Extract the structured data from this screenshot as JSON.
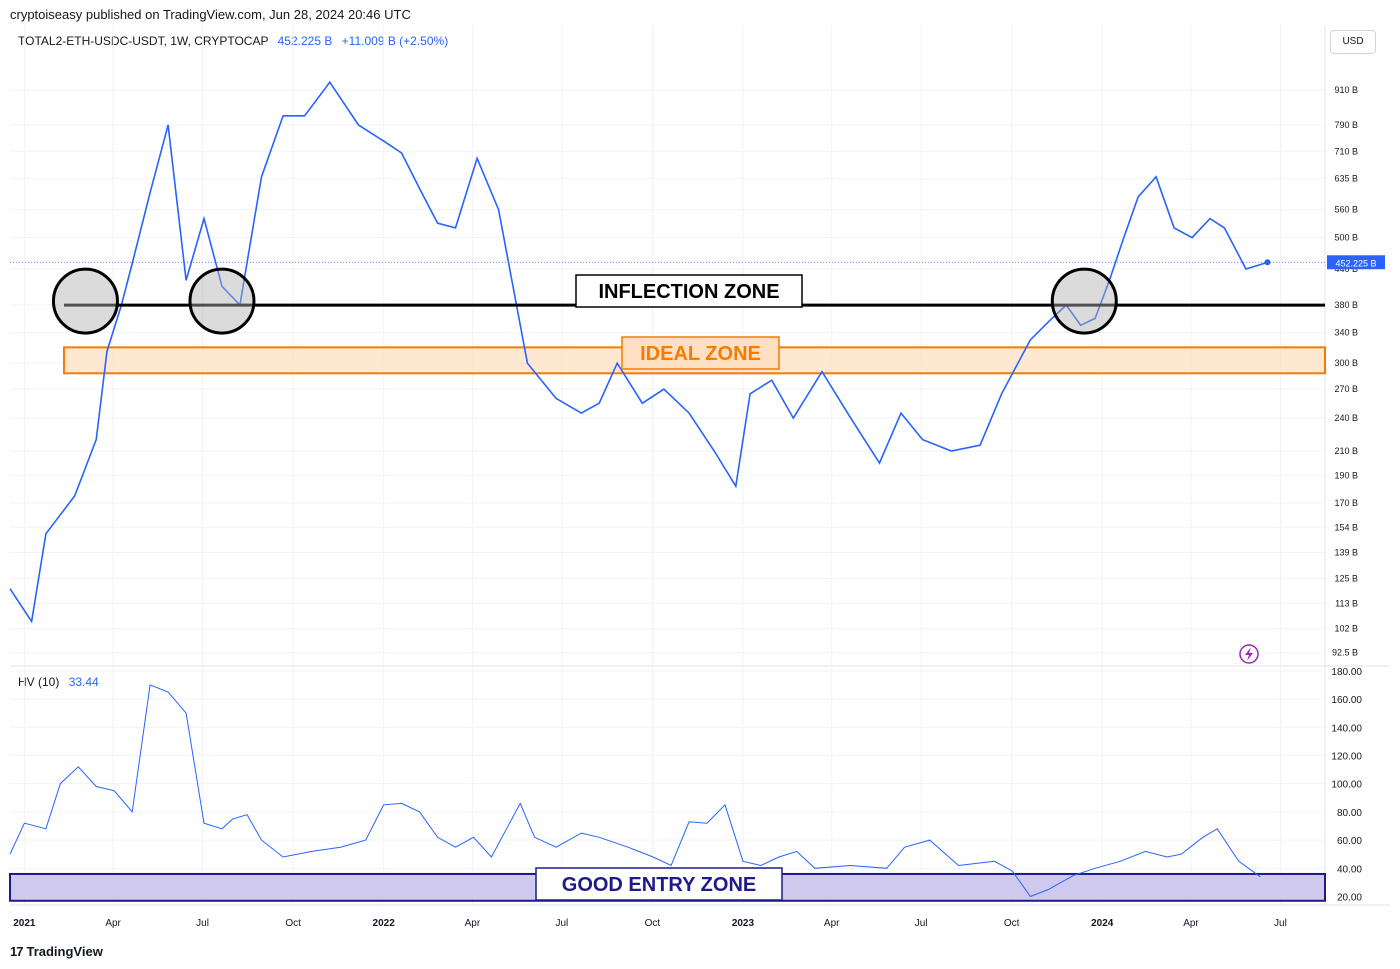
{
  "header": {
    "published": "cryptoiseasy published on TradingView.com, Jun 28, 2024 20:46 UTC"
  },
  "legend": {
    "symbol": "TOTAL2-ETH-USDC-USDT, 1W, CRYPTOCAP",
    "value": "452.225 B",
    "change": "+11.009 B (+2.50%)"
  },
  "currency": "USD",
  "hv_legend": {
    "label": "HV (10)",
    "value": "33.44"
  },
  "footer": {
    "brand": "TradingView",
    "logo": "17"
  },
  "colors": {
    "line": "#2962ff",
    "ideal": "#f57c00",
    "good": "#1f1a8c",
    "grid": "#f0f3fa",
    "inflection": "#000000"
  },
  "chart_data": [
    {
      "type": "line",
      "title": "TOTAL2-ETH-USDC-USDT, 1W, CRYPTOCAP",
      "yscale": "log",
      "y_unit": "B",
      "ylim": [
        88,
        1050
      ],
      "x_ticks": [
        "2021",
        "Apr",
        "Jul",
        "Oct",
        "2022",
        "Apr",
        "Jul",
        "Oct",
        "2023",
        "Apr",
        "Jul",
        "Oct",
        "2024",
        "Apr",
        "Jul"
      ],
      "y_ticks": [
        "910 B",
        "790 B",
        "710 B",
        "635 B",
        "560 B",
        "500 B",
        "440 B",
        "380 B",
        "340 B",
        "300 B",
        "270 B",
        "240 B",
        "210 B",
        "190 B",
        "170 B",
        "154 B",
        "139 B",
        "125 B",
        "113 B",
        "102 B",
        "92.5 B"
      ],
      "y_tick_values": [
        910,
        790,
        710,
        635,
        560,
        500,
        440,
        380,
        340,
        300,
        270,
        240,
        210,
        190,
        170,
        154,
        139,
        125,
        113,
        102,
        92.5
      ],
      "last_value_label": "452.225 B",
      "last_value": 452.225,
      "series": [
        {
          "x": [
            2020.96,
            2021.02,
            2021.06,
            2021.1,
            2021.14,
            2021.2,
            2021.23,
            2021.27,
            2021.3,
            2021.35,
            2021.4,
            2021.45,
            2021.5,
            2021.55,
            2021.6,
            2021.66,
            2021.72,
            2021.78,
            2021.85,
            2021.93,
            2022.0,
            2022.05,
            2022.1,
            2022.15,
            2022.2,
            2022.26,
            2022.32,
            2022.4,
            2022.48,
            2022.55,
            2022.6,
            2022.65,
            2022.72,
            2022.78,
            2022.85,
            2022.92,
            2022.98,
            2023.02,
            2023.08,
            2023.14,
            2023.22,
            2023.3,
            2023.38,
            2023.44,
            2023.5,
            2023.58,
            2023.66,
            2023.72,
            2023.8,
            2023.86,
            2023.9,
            2023.94,
            2023.98,
            2024.02,
            2024.06,
            2024.1,
            2024.15,
            2024.2,
            2024.25,
            2024.3,
            2024.34,
            2024.4,
            2024.46
          ],
          "y": [
            120,
            105,
            150,
            162,
            175,
            220,
            315,
            380,
            450,
            600,
            790,
            420,
            540,
            410,
            380,
            640,
            820,
            820,
            940,
            790,
            740,
            705,
            610,
            530,
            520,
            690,
            560,
            300,
            260,
            245,
            255,
            300,
            255,
            270,
            245,
            210,
            182,
            265,
            280,
            240,
            290,
            240,
            200,
            245,
            220,
            210,
            215,
            265,
            330,
            360,
            380,
            350,
            360,
            420,
            500,
            590,
            640,
            520,
            500,
            540,
            520,
            440,
            452
          ]
        }
      ]
    },
    {
      "type": "line",
      "title": "HV (10)",
      "ylim": [
        14,
        182
      ],
      "y_ticks": [
        "180.00",
        "160.00",
        "140.00",
        "120.00",
        "100.00",
        "80.00",
        "60.00",
        "40.00",
        "20.00"
      ],
      "y_tick_values": [
        180,
        160,
        140,
        120,
        100,
        80,
        60,
        40,
        20
      ],
      "series": [
        {
          "x": [
            2020.96,
            2021.0,
            2021.06,
            2021.1,
            2021.15,
            2021.2,
            2021.25,
            2021.3,
            2021.35,
            2021.4,
            2021.45,
            2021.5,
            2021.55,
            2021.58,
            2021.62,
            2021.66,
            2021.72,
            2021.8,
            2021.88,
            2021.95,
            2022.0,
            2022.05,
            2022.1,
            2022.15,
            2022.2,
            2022.25,
            2022.3,
            2022.38,
            2022.42,
            2022.48,
            2022.55,
            2022.6,
            2022.68,
            2022.75,
            2022.8,
            2022.85,
            2022.9,
            2022.95,
            2023.0,
            2023.05,
            2023.1,
            2023.15,
            2023.2,
            2023.3,
            2023.4,
            2023.45,
            2023.52,
            2023.6,
            2023.7,
            2023.75,
            2023.8,
            2023.85,
            2023.92,
            2023.98,
            2024.05,
            2024.12,
            2024.18,
            2024.22,
            2024.28,
            2024.32,
            2024.38,
            2024.44
          ],
          "y": [
            50,
            72,
            68,
            100,
            112,
            98,
            95,
            80,
            170,
            165,
            150,
            72,
            68,
            75,
            78,
            60,
            48,
            52,
            55,
            60,
            85,
            86,
            80,
            62,
            55,
            62,
            48,
            86,
            62,
            55,
            65,
            62,
            55,
            48,
            42,
            73,
            72,
            85,
            45,
            42,
            48,
            52,
            40,
            42,
            40,
            55,
            60,
            42,
            45,
            38,
            20,
            25,
            35,
            40,
            45,
            52,
            48,
            50,
            62,
            68,
            45,
            34
          ]
        }
      ]
    }
  ],
  "annotations": {
    "inflection": {
      "label": "INFLECTION ZONE",
      "level": 380
    },
    "ideal": {
      "label": "IDEAL ZONE",
      "range": [
        288,
        320
      ]
    },
    "good": {
      "label": "GOOD ENTRY ZONE",
      "range": [
        17,
        36
      ]
    },
    "circle_x": [
      2021.17,
      2021.55,
      2023.95
    ]
  }
}
